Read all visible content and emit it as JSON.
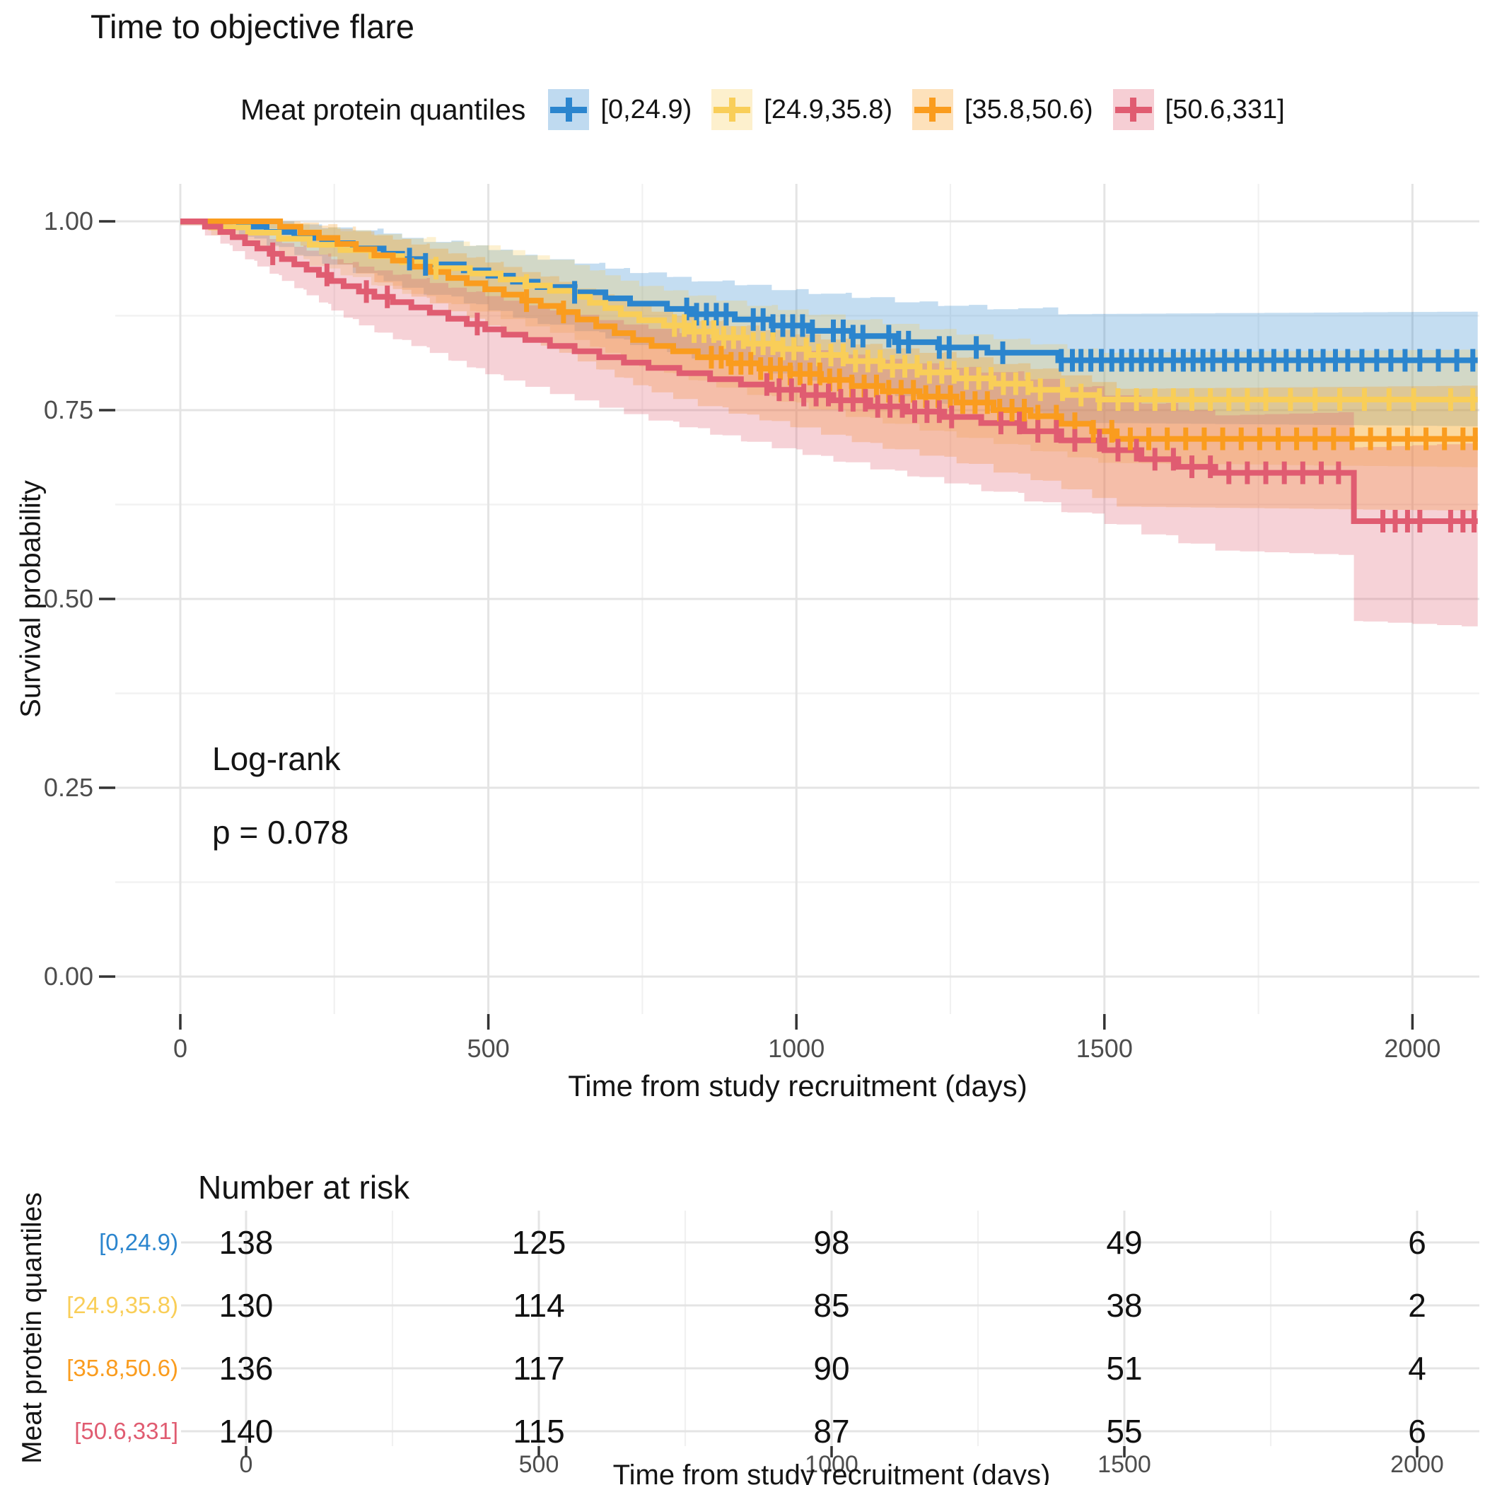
{
  "title": "Time to objective flare",
  "legend": {
    "label": "Meat protein quantiles",
    "items": [
      {
        "label": "[0,24.9)",
        "color": "#2B85CE"
      },
      {
        "label": "[24.9,35.8)",
        "color": "#F9CE58"
      },
      {
        "label": "[35.8,50.6)",
        "color": "#FA9C1E"
      },
      {
        "label": "[50.6,331]",
        "color": "#E05C71"
      }
    ]
  },
  "annotations": {
    "test_name": "Log-rank",
    "p_value": "p = 0.078"
  },
  "axes": {
    "y": {
      "title": "Survival probability",
      "tick_labels": [
        "1.00",
        "0.75",
        "0.50",
        "0.25",
        "0.00"
      ],
      "tick_values": [
        1.0,
        0.75,
        0.5,
        0.25,
        0.0
      ],
      "minor_values": [
        0.875,
        0.625,
        0.375,
        0.125
      ]
    },
    "x": {
      "title": "Time from study recruitment (days)",
      "tick_labels": [
        "0",
        "500",
        "1000",
        "1500",
        "2000"
      ],
      "tick_values": [
        0,
        500,
        1000,
        1500,
        2000
      ],
      "minor_values": [
        250,
        750,
        1250,
        1750
      ],
      "max": 2106
    }
  },
  "risk_table": {
    "title": "Number at risk",
    "y_axis_label": "Meat protein quantiles",
    "x_title": "Time from study recruitment (days)",
    "tick_labels": [
      "0",
      "500",
      "1000",
      "1500",
      "2000"
    ],
    "tick_values": [
      0,
      500,
      1000,
      1500,
      2000
    ],
    "rows": [
      {
        "label": "[0,24.9)",
        "color": "#2B85CE",
        "values": [
          138,
          125,
          98,
          49,
          6
        ]
      },
      {
        "label": "[24.9,35.8)",
        "color": "#F9CE58",
        "values": [
          130,
          114,
          85,
          38,
          2
        ]
      },
      {
        "label": "[35.8,50.6)",
        "color": "#FA9C1E",
        "values": [
          136,
          117,
          90,
          51,
          4
        ]
      },
      {
        "label": "[50.6,331]",
        "color": "#E05C71",
        "values": [
          140,
          115,
          87,
          55,
          6
        ]
      }
    ]
  },
  "chart_data": {
    "type": "line",
    "subtype": "kaplan-meier-step",
    "title": "Time to objective flare",
    "xlabel": "Time from study recruitment (days)",
    "ylabel": "Survival probability",
    "xlim": [
      0,
      2106
    ],
    "ylim": [
      0,
      1
    ],
    "grid": "major+minor",
    "legend_position": "top",
    "statistic": {
      "test": "Log-rank",
      "p": 0.078
    },
    "series": [
      {
        "name": "[0,24.9)",
        "color": "#2B85CE",
        "n_start": 138,
        "final_survival": 0.816,
        "steps": [
          [
            0,
            1
          ],
          [
            95,
            0.993
          ],
          [
            140,
            0.986
          ],
          [
            185,
            0.978
          ],
          [
            230,
            0.971
          ],
          [
            280,
            0.964
          ],
          [
            330,
            0.957
          ],
          [
            360,
            0.95
          ],
          [
            395,
            0.943
          ],
          [
            460,
            0.935
          ],
          [
            500,
            0.928
          ],
          [
            540,
            0.92
          ],
          [
            580,
            0.913
          ],
          [
            640,
            0.906
          ],
          [
            690,
            0.898
          ],
          [
            730,
            0.891
          ],
          [
            790,
            0.884
          ],
          [
            830,
            0.877
          ],
          [
            900,
            0.87
          ],
          [
            960,
            0.862
          ],
          [
            1020,
            0.855
          ],
          [
            1090,
            0.848
          ],
          [
            1160,
            0.84
          ],
          [
            1230,
            0.833
          ],
          [
            1310,
            0.826
          ],
          [
            1425,
            0.816
          ],
          [
            2106,
            0.816
          ]
        ],
        "censor_days": [
          372,
          398,
          640,
          822,
          838,
          854,
          870,
          886,
          930,
          946,
          962,
          978,
          994,
          1010,
          1026,
          1060,
          1076,
          1092,
          1108,
          1150,
          1166,
          1182,
          1232,
          1248,
          1292,
          1335,
          1430,
          1448,
          1462,
          1478,
          1495,
          1512,
          1528,
          1544,
          1560,
          1576,
          1592,
          1612,
          1628,
          1644,
          1660,
          1676,
          1695,
          1715,
          1735,
          1755,
          1775,
          1795,
          1815,
          1835,
          1855,
          1875,
          1895,
          1918,
          1942,
          1965,
          1988,
          2012,
          2042,
          2072,
          2098
        ],
        "ci_width": [
          [
            0,
            0.004
          ],
          [
            100,
            0.012
          ],
          [
            300,
            0.03
          ],
          [
            500,
            0.04
          ],
          [
            800,
            0.05
          ],
          [
            1100,
            0.06
          ],
          [
            1440,
            0.072
          ],
          [
            2106,
            0.076
          ]
        ]
      },
      {
        "name": "[24.9,35.8)",
        "color": "#F9CE58",
        "n_start": 130,
        "final_survival": 0.764,
        "steps": [
          [
            0,
            1
          ],
          [
            50,
            0.992
          ],
          [
            110,
            0.985
          ],
          [
            160,
            0.977
          ],
          [
            210,
            0.969
          ],
          [
            260,
            0.962
          ],
          [
            310,
            0.954
          ],
          [
            360,
            0.946
          ],
          [
            415,
            0.938
          ],
          [
            470,
            0.931
          ],
          [
            520,
            0.923
          ],
          [
            560,
            0.915
          ],
          [
            600,
            0.908
          ],
          [
            640,
            0.9
          ],
          [
            665,
            0.892
          ],
          [
            690,
            0.885
          ],
          [
            715,
            0.877
          ],
          [
            745,
            0.869
          ],
          [
            785,
            0.862
          ],
          [
            825,
            0.854
          ],
          [
            870,
            0.846
          ],
          [
            920,
            0.838
          ],
          [
            970,
            0.831
          ],
          [
            1020,
            0.823
          ],
          [
            1080,
            0.815
          ],
          [
            1140,
            0.808
          ],
          [
            1200,
            0.8
          ],
          [
            1260,
            0.792
          ],
          [
            1320,
            0.785
          ],
          [
            1380,
            0.777
          ],
          [
            1440,
            0.77
          ],
          [
            1490,
            0.764
          ],
          [
            2106,
            0.764
          ]
        ],
        "censor_days": [
          415,
          562,
          802,
          818,
          834,
          850,
          866,
          882,
          898,
          914,
          930,
          946,
          962,
          978,
          996,
          1016,
          1036,
          1056,
          1076,
          1096,
          1116,
          1136,
          1156,
          1176,
          1196,
          1216,
          1236,
          1256,
          1276,
          1296,
          1316,
          1336,
          1356,
          1376,
          1396,
          1432,
          1462,
          1492,
          1522,
          1552,
          1582,
          1612,
          1642,
          1672,
          1702,
          1732,
          1762,
          1802,
          1842,
          1882,
          1922,
          1962,
          2002,
          2062,
          2098
        ],
        "ci_width": [
          [
            0,
            0.004
          ],
          [
            100,
            0.014
          ],
          [
            300,
            0.033
          ],
          [
            500,
            0.045
          ],
          [
            800,
            0.055
          ],
          [
            1100,
            0.065
          ],
          [
            1500,
            0.073
          ],
          [
            2106,
            0.078
          ]
        ]
      },
      {
        "name": "[35.8,50.6)",
        "color": "#FA9C1E",
        "n_start": 136,
        "final_survival": 0.712,
        "steps": [
          [
            0,
            1
          ],
          [
            162,
            0.993
          ],
          [
            195,
            0.985
          ],
          [
            225,
            0.978
          ],
          [
            255,
            0.97
          ],
          [
            285,
            0.963
          ],
          [
            315,
            0.955
          ],
          [
            345,
            0.948
          ],
          [
            375,
            0.94
          ],
          [
            405,
            0.933
          ],
          [
            435,
            0.925
          ],
          [
            465,
            0.918
          ],
          [
            495,
            0.91
          ],
          [
            525,
            0.903
          ],
          [
            555,
            0.895
          ],
          [
            585,
            0.888
          ],
          [
            615,
            0.88
          ],
          [
            645,
            0.87
          ],
          [
            675,
            0.861
          ],
          [
            705,
            0.852
          ],
          [
            735,
            0.843
          ],
          [
            765,
            0.835
          ],
          [
            800,
            0.828
          ],
          [
            840,
            0.82
          ],
          [
            890,
            0.812
          ],
          [
            940,
            0.805
          ],
          [
            990,
            0.798
          ],
          [
            1040,
            0.79
          ],
          [
            1090,
            0.782
          ],
          [
            1140,
            0.775
          ],
          [
            1200,
            0.768
          ],
          [
            1260,
            0.76
          ],
          [
            1320,
            0.75
          ],
          [
            1380,
            0.742
          ],
          [
            1430,
            0.732
          ],
          [
            1480,
            0.722
          ],
          [
            1520,
            0.712
          ],
          [
            2106,
            0.712
          ]
        ],
        "censor_days": [
          562,
          622,
          862,
          878,
          894,
          910,
          926,
          942,
          958,
          974,
          990,
          1006,
          1022,
          1038,
          1054,
          1070,
          1090,
          1110,
          1130,
          1150,
          1170,
          1190,
          1210,
          1230,
          1250,
          1270,
          1290,
          1310,
          1330,
          1350,
          1370,
          1392,
          1422,
          1452,
          1482,
          1512,
          1542,
          1572,
          1602,
          1632,
          1662,
          1692,
          1722,
          1752,
          1782,
          1812,
          1842,
          1872,
          1902,
          1932,
          1962,
          1992,
          2022,
          2052,
          2082,
          2102
        ],
        "ci_width": [
          [
            0,
            0.004
          ],
          [
            160,
            0.01
          ],
          [
            300,
            0.03
          ],
          [
            500,
            0.042
          ],
          [
            800,
            0.055
          ],
          [
            1100,
            0.065
          ],
          [
            1520,
            0.078
          ],
          [
            2106,
            0.083
          ]
        ]
      },
      {
        "name": "[50.6,331]",
        "color": "#E05C71",
        "n_start": 140,
        "final_survival": 0.603,
        "steps": [
          [
            0,
            1
          ],
          [
            40,
            0.993
          ],
          [
            65,
            0.986
          ],
          [
            85,
            0.979
          ],
          [
            105,
            0.971
          ],
          [
            125,
            0.964
          ],
          [
            145,
            0.957
          ],
          [
            165,
            0.95
          ],
          [
            185,
            0.943
          ],
          [
            205,
            0.936
          ],
          [
            225,
            0.929
          ],
          [
            245,
            0.921
          ],
          [
            265,
            0.914
          ],
          [
            290,
            0.907
          ],
          [
            315,
            0.9
          ],
          [
            345,
            0.893
          ],
          [
            375,
            0.886
          ],
          [
            405,
            0.879
          ],
          [
            435,
            0.871
          ],
          [
            465,
            0.864
          ],
          [
            495,
            0.857
          ],
          [
            525,
            0.85
          ],
          [
            560,
            0.843
          ],
          [
            600,
            0.835
          ],
          [
            640,
            0.828
          ],
          [
            680,
            0.82
          ],
          [
            720,
            0.813
          ],
          [
            760,
            0.806
          ],
          [
            810,
            0.799
          ],
          [
            860,
            0.791
          ],
          [
            910,
            0.784
          ],
          [
            960,
            0.777
          ],
          [
            1010,
            0.77
          ],
          [
            1060,
            0.763
          ],
          [
            1120,
            0.755
          ],
          [
            1180,
            0.748
          ],
          [
            1240,
            0.741
          ],
          [
            1300,
            0.733
          ],
          [
            1370,
            0.722
          ],
          [
            1430,
            0.71
          ],
          [
            1500,
            0.697
          ],
          [
            1560,
            0.685
          ],
          [
            1620,
            0.675
          ],
          [
            1680,
            0.667
          ],
          [
            1905,
            0.603
          ],
          [
            2106,
            0.603
          ]
        ],
        "censor_days": [
          150,
          238,
          302,
          336,
          482,
          952,
          972,
          992,
          1012,
          1032,
          1052,
          1072,
          1092,
          1112,
          1132,
          1152,
          1172,
          1192,
          1212,
          1232,
          1252,
          1332,
          1362,
          1392,
          1422,
          1452,
          1492,
          1522,
          1552,
          1582,
          1612,
          1642,
          1672,
          1702,
          1732,
          1762,
          1792,
          1822,
          1852,
          1880,
          1952,
          1972,
          1992,
          2012,
          2062,
          2082,
          2100
        ],
        "ci_width": [
          [
            0,
            0.005
          ],
          [
            100,
            0.018
          ],
          [
            300,
            0.04
          ],
          [
            500,
            0.052
          ],
          [
            800,
            0.062
          ],
          [
            1100,
            0.072
          ],
          [
            1500,
            0.085
          ],
          [
            1900,
            0.095
          ],
          [
            1905,
            0.115
          ],
          [
            2106,
            0.122
          ]
        ]
      }
    ],
    "number_at_risk": {
      "times": [
        0,
        500,
        1000,
        1500,
        2000
      ],
      "rows": [
        {
          "group": "[0,24.9)",
          "values": [
            138,
            125,
            98,
            49,
            6
          ]
        },
        {
          "group": "[24.9,35.8)",
          "values": [
            130,
            114,
            85,
            38,
            2
          ]
        },
        {
          "group": "[35.8,50.6)",
          "values": [
            136,
            117,
            90,
            51,
            4
          ]
        },
        {
          "group": "[50.6,331]",
          "values": [
            140,
            115,
            87,
            55,
            6
          ]
        }
      ]
    }
  },
  "colors": {
    "grid_major": "#E4E4E4",
    "grid_minor": "#F1F1F1",
    "tick": "#333333",
    "tick_text": "#4d4d4d"
  }
}
